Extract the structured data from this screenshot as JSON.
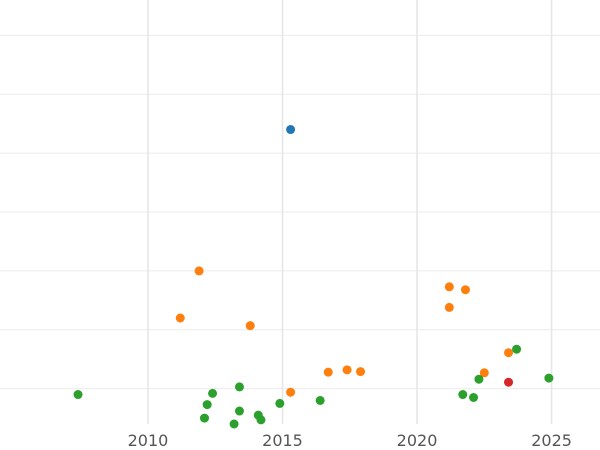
{
  "chart_data": {
    "type": "scatter",
    "title": "",
    "xlabel": "",
    "ylabel": "",
    "xlim": [
      2004.5,
      2026.8
    ],
    "ylim": [
      -0.6,
      6.6
    ],
    "grid": true,
    "legend": "none",
    "x_ticks": [
      2010,
      2015,
      2020,
      2025
    ],
    "x_tick_labels": [
      "2010",
      "2015",
      "2020",
      "2025"
    ],
    "y_gridlines": [
      0,
      1,
      2,
      3,
      4,
      5,
      6
    ],
    "series": [
      {
        "color": "#1f77b4",
        "points": [
          [
            2015.3,
            4.4
          ]
        ]
      },
      {
        "color": "#ff7f0e",
        "points": [
          [
            2011.9,
            2.0
          ],
          [
            2011.2,
            1.2
          ],
          [
            2013.8,
            1.07
          ],
          [
            2015.3,
            -0.06
          ],
          [
            2016.7,
            0.28
          ],
          [
            2017.4,
            0.32
          ],
          [
            2017.9,
            0.29
          ],
          [
            2021.2,
            1.73
          ],
          [
            2021.8,
            1.68
          ],
          [
            2021.2,
            1.38
          ],
          [
            2022.5,
            0.27
          ],
          [
            2023.4,
            0.61
          ]
        ]
      },
      {
        "color": "#2ca02c",
        "points": [
          [
            2007.4,
            -0.1
          ],
          [
            2012.4,
            -0.08
          ],
          [
            2012.2,
            -0.27
          ],
          [
            2012.1,
            -0.5
          ],
          [
            2013.4,
            0.03
          ],
          [
            2013.4,
            -0.38
          ],
          [
            2013.2,
            -0.6
          ],
          [
            2014.1,
            -0.45
          ],
          [
            2014.2,
            -0.53
          ],
          [
            2014.9,
            -0.25
          ],
          [
            2016.4,
            -0.2
          ],
          [
            2021.7,
            -0.1
          ],
          [
            2022.1,
            -0.15
          ],
          [
            2022.3,
            0.16
          ],
          [
            2023.7,
            0.67
          ],
          [
            2024.9,
            0.18
          ]
        ]
      },
      {
        "color": "#d62728",
        "points": [
          [
            2023.4,
            0.11
          ]
        ]
      }
    ]
  }
}
